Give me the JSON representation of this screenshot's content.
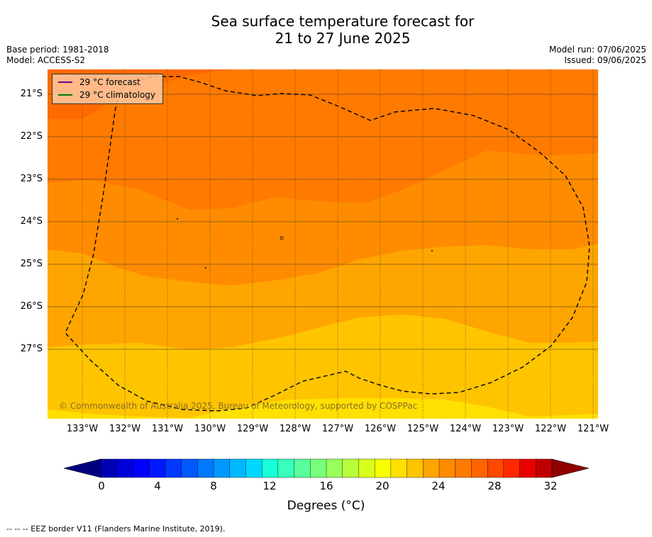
{
  "title": {
    "line1": "Sea surface temperature forecast for",
    "line2": "21 to 27 June 2025"
  },
  "meta": {
    "base_period": "Base period: 1981-2018",
    "model": "Model: ACCESS-S2",
    "model_run": "Model run: 07/06/2025",
    "issued": "Issued: 09/06/2025"
  },
  "map": {
    "lat_labels": [
      "21°S",
      "22°S",
      "23°S",
      "24°S",
      "25°S",
      "26°S",
      "27°S"
    ],
    "lon_labels": [
      "133°W",
      "132°W",
      "131°W",
      "130°W",
      "129°W",
      "128°W",
      "127°W",
      "126°W",
      "125°W",
      "124°W",
      "123°W",
      "122°W",
      "121°W"
    ],
    "legend": [
      {
        "label": "29 °C  forecast",
        "color": "#7b007b"
      },
      {
        "label": "29 °C  climatology",
        "color": "#007b00"
      }
    ],
    "copyright": "© Commonwealth of Australia 2025, Bureau of Meteorology, supported by COSPPac",
    "band_colors": [
      "#ff6a00",
      "#ff7a00",
      "#ff8c00",
      "#ffa500",
      "#ffc400",
      "#ffe000"
    ]
  },
  "colorbar": {
    "ticks": [
      "0",
      "4",
      "8",
      "12",
      "16",
      "20",
      "24",
      "28",
      "32"
    ],
    "title": "Degrees (°C)",
    "colors": [
      "#00007f",
      "#0000b5",
      "#0000db",
      "#0000ff",
      "#0018ff",
      "#0038ff",
      "#0058ff",
      "#0078ff",
      "#0098ff",
      "#00b8ff",
      "#00d8ff",
      "#18ffdb",
      "#38ffbb",
      "#58ff9b",
      "#78ff7b",
      "#98ff5b",
      "#b8ff3b",
      "#d8ff1b",
      "#f8ff00",
      "#ffe000",
      "#ffc400",
      "#ffa500",
      "#ff8c00",
      "#ff7a00",
      "#ff6400",
      "#ff4800",
      "#ff2a00",
      "#e80000",
      "#c00000",
      "#900000"
    ]
  },
  "footnote": "--  --  -- EEZ border V11 (Flanders Marine Institute, 2019)."
}
